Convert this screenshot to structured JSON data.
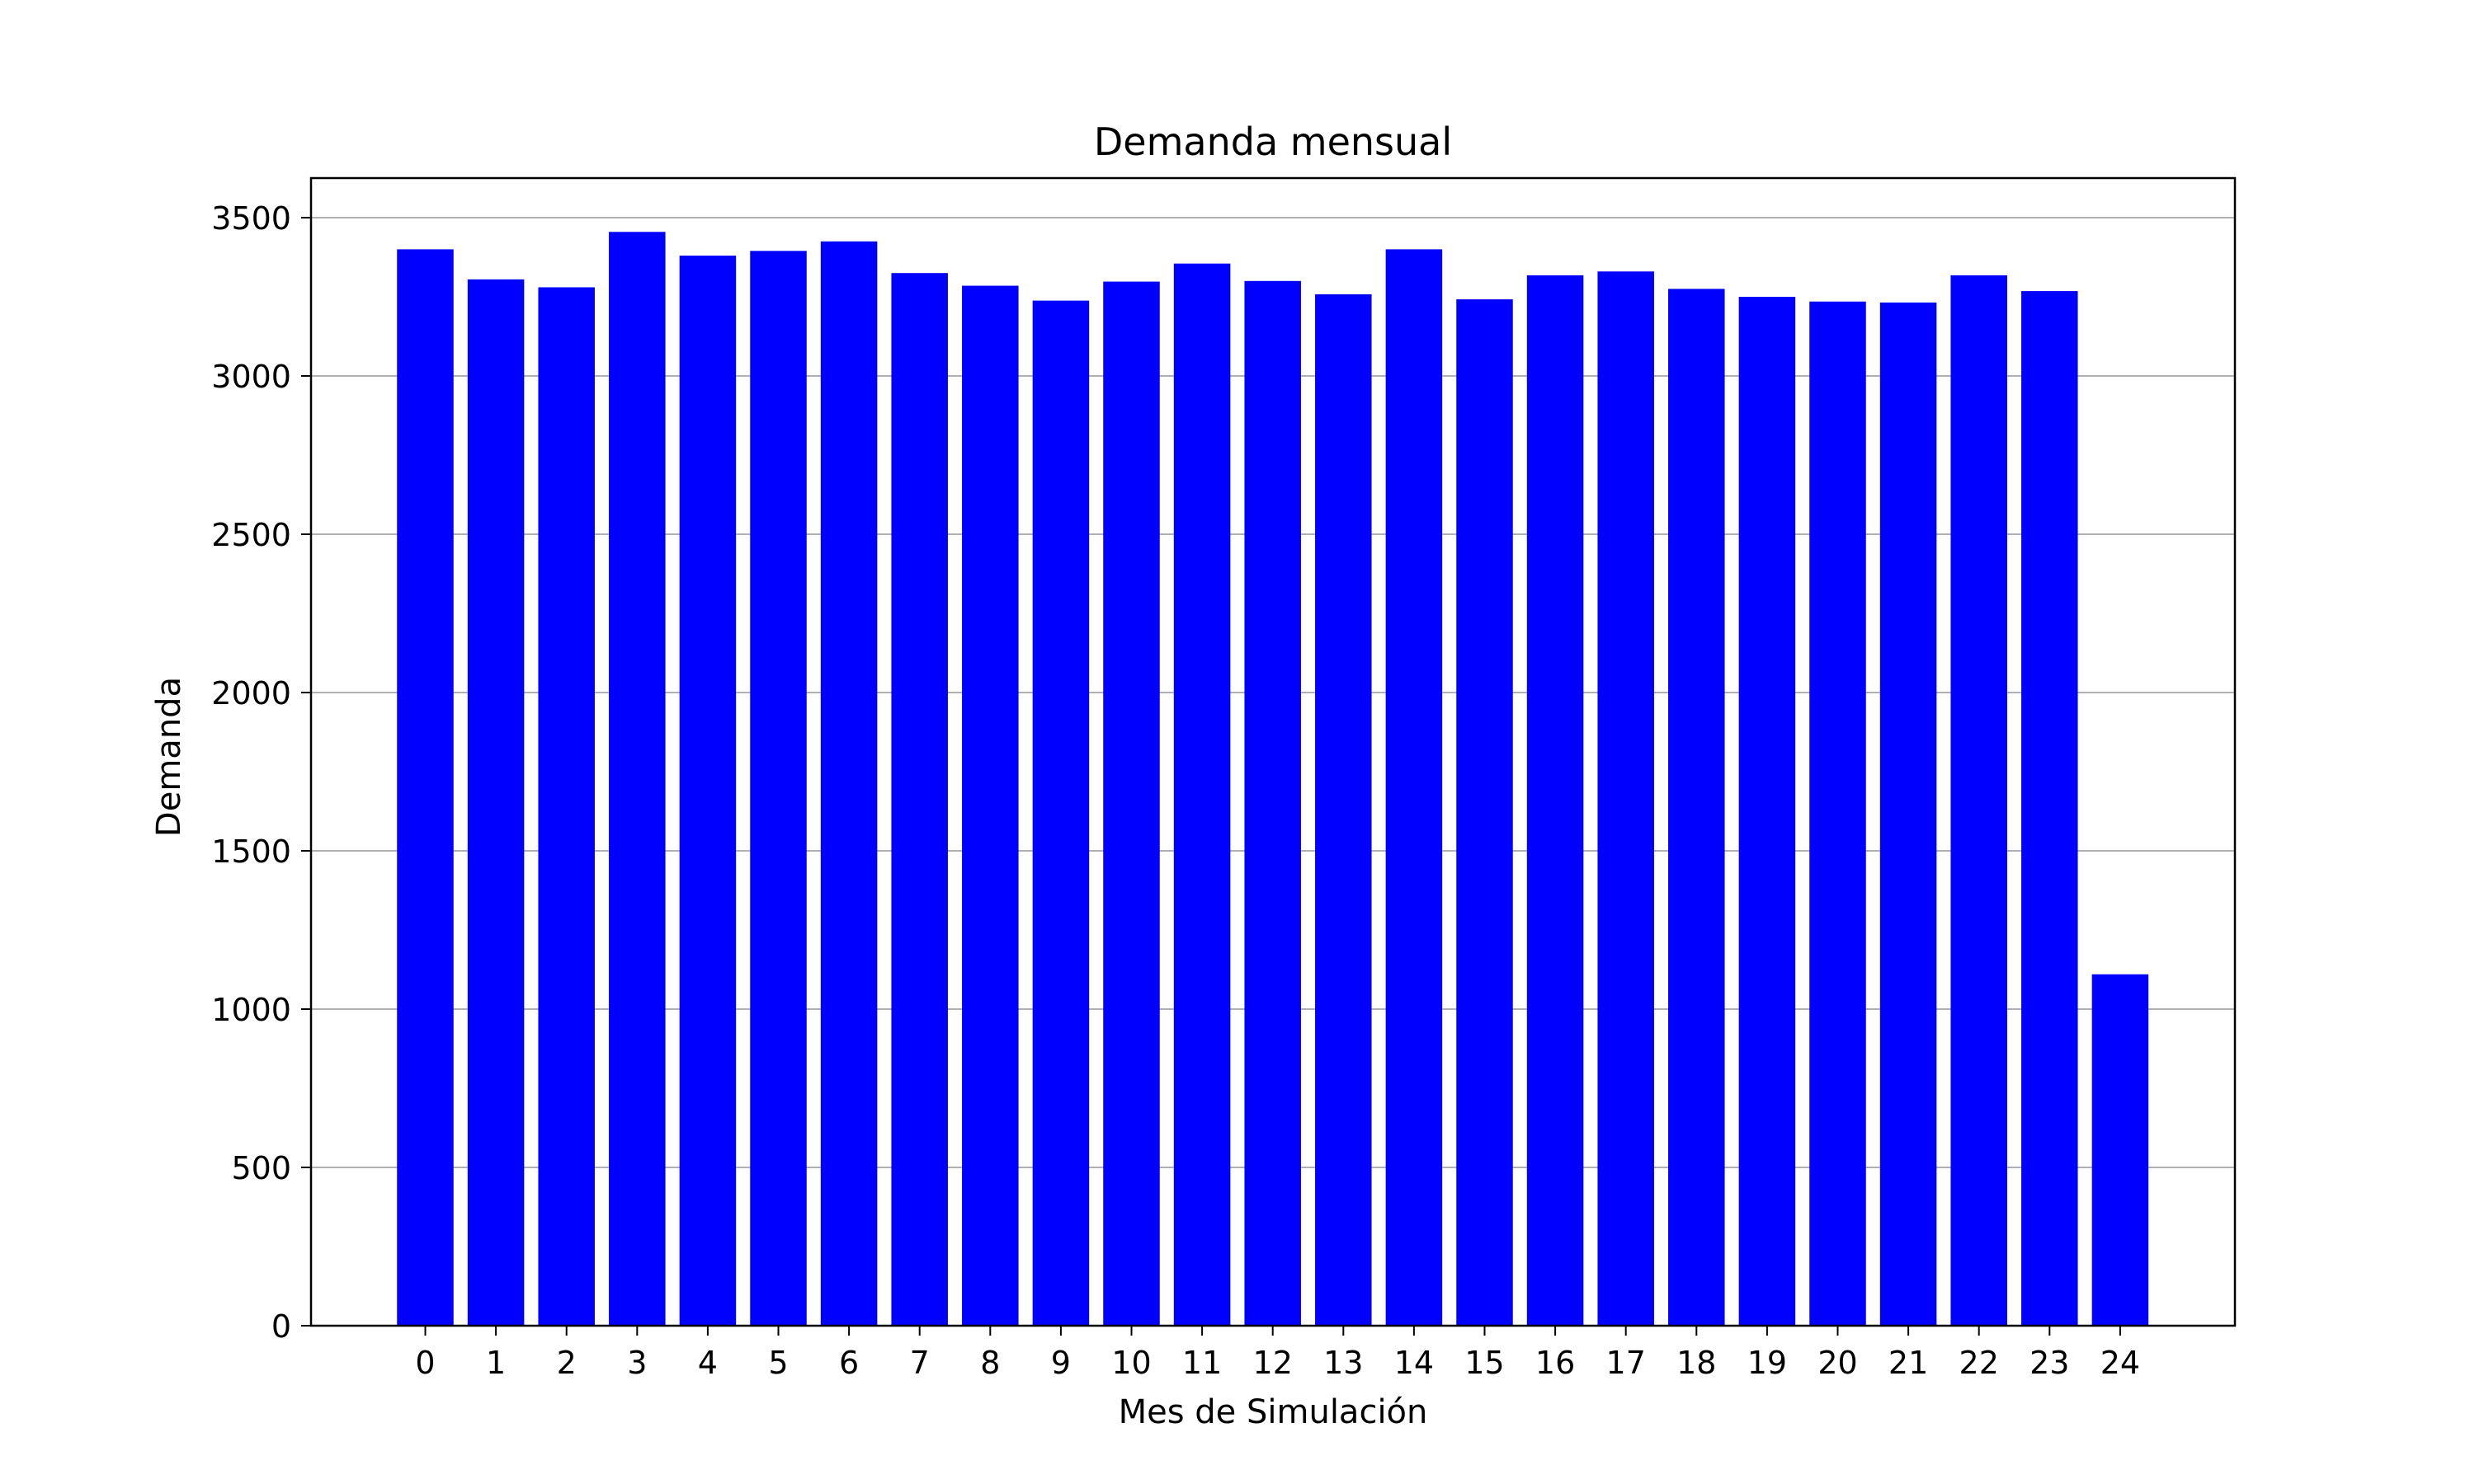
{
  "chart_data": {
    "type": "bar",
    "title": "Demanda mensual",
    "xlabel": "Mes de Simulación",
    "ylabel": "Demanda",
    "categories": [
      "0",
      "1",
      "2",
      "3",
      "4",
      "5",
      "6",
      "7",
      "8",
      "9",
      "10",
      "11",
      "12",
      "13",
      "14",
      "15",
      "16",
      "17",
      "18",
      "19",
      "20",
      "21",
      "22",
      "23",
      "24"
    ],
    "values": [
      3400,
      3305,
      3280,
      3455,
      3380,
      3395,
      3425,
      3325,
      3285,
      3238,
      3298,
      3355,
      3300,
      3258,
      3400,
      3242,
      3318,
      3330,
      3275,
      3250,
      3235,
      3232,
      3318,
      3268,
      1110
    ],
    "yticks": [
      0,
      500,
      1000,
      1500,
      2000,
      2500,
      3000,
      3500
    ],
    "ylim": [
      0,
      3625
    ],
    "grid": "horizontal",
    "bar_color": "#0000ff",
    "grid_color": "#b0b0b0"
  }
}
